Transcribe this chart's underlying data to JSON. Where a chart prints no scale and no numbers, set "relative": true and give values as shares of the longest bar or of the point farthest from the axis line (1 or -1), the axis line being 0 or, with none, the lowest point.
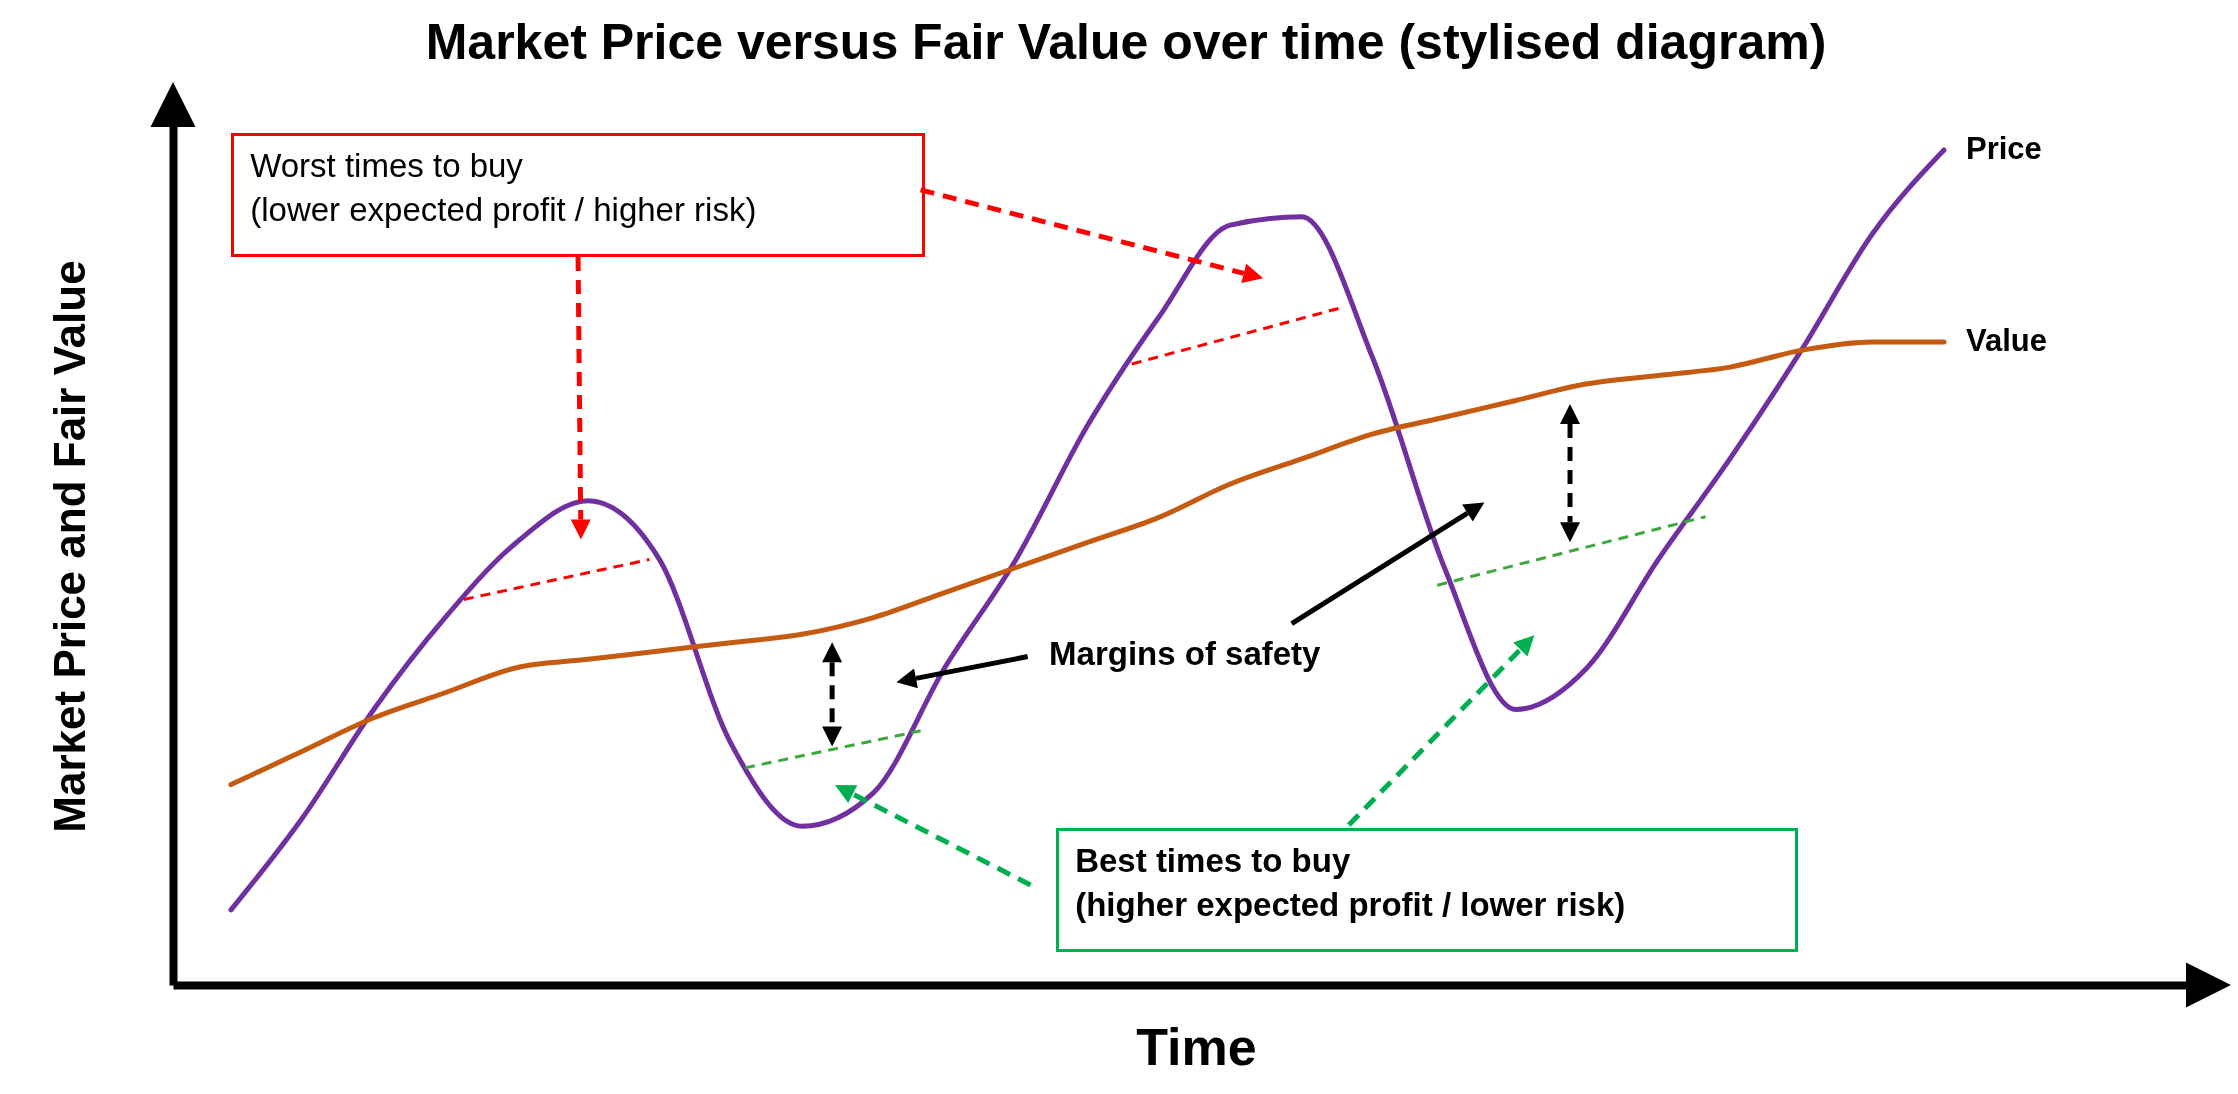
{
  "chart_data": {
    "type": "line",
    "title": "Market Price versus Fair Value over time (stylised diagram)",
    "xlabel": "Time",
    "ylabel": "Market Price and Fair Value",
    "relative": true,
    "categories": [
      null,
      null,
      null,
      null,
      null,
      null,
      null,
      null,
      null,
      null,
      null,
      null,
      null,
      null,
      null,
      null,
      null,
      null,
      null,
      null,
      null,
      null,
      null,
      null,
      null
    ],
    "series": [
      {
        "name": "Price",
        "color": "#7030a0",
        "values": [
          0.09,
          0.2,
          0.33,
          0.44,
          0.53,
          0.58,
          0.51,
          0.29,
          0.19,
          0.23,
          0.38,
          0.51,
          0.67,
          0.8,
          0.91,
          0.92,
          0.75,
          0.5,
          0.33,
          0.38,
          0.51,
          0.63,
          0.76,
          0.9,
          1
        ]
      },
      {
        "name": "Value",
        "color": "#c55a11",
        "values": [
          0.24,
          0.28,
          0.32,
          0.35,
          0.38,
          0.39,
          0.4,
          0.41,
          0.42,
          0.44,
          0.47,
          0.5,
          0.53,
          0.56,
          0.6,
          0.63,
          0.66,
          0.68,
          0.7,
          0.72,
          0.73,
          0.74,
          0.76,
          0.77,
          0.77
        ]
      }
    ],
    "annotations": [
      "Worst times to buy",
      "(lower expected profit / higher risk)",
      "Margins of safety",
      "Best times to buy",
      "(higher expected profit / lower risk)"
    ]
  }
}
